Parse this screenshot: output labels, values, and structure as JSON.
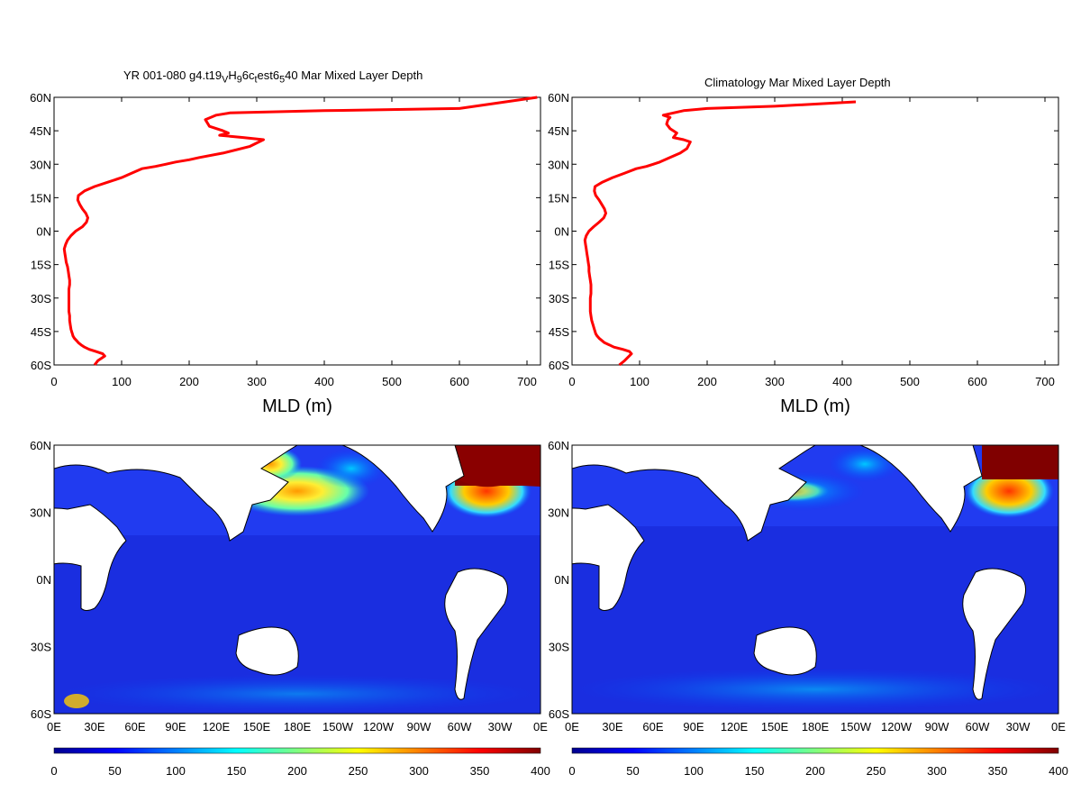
{
  "chart_data": [
    {
      "type": "line",
      "title": "YR 001-080 g4.t19_H_6c_est6_40 Mar Mixed Layer Depth",
      "title_parts": [
        "YR 001-080 g4.t19",
        "V",
        "H",
        "9",
        "6c",
        "t",
        "est6",
        "5",
        "40 Mar Mixed Layer Depth"
      ],
      "xlabel": "MLD (m)",
      "ylabel": "",
      "xlim": [
        0,
        720
      ],
      "ylim": [
        -60,
        60
      ],
      "x_ticks": [
        "0",
        "100",
        "200",
        "300",
        "400",
        "500",
        "600",
        "700"
      ],
      "y_ticks": [
        "60N",
        "45N",
        "30N",
        "15N",
        "0N",
        "15S",
        "30S",
        "45S",
        "60S"
      ],
      "line_color": "#ff0000",
      "series": [
        {
          "x": [
            60,
            65,
            75,
            72,
            62,
            52,
            45,
            40,
            36,
            33,
            30,
            28,
            27,
            26,
            25,
            24,
            23,
            23,
            22,
            22,
            22,
            22,
            22,
            22,
            23,
            23,
            22,
            21,
            20,
            18,
            17,
            16,
            15,
            17,
            20,
            25,
            32,
            42,
            48,
            50,
            47,
            42,
            38,
            35,
            36,
            45,
            60,
            80,
            100,
            115,
            130,
            150,
            165,
            180,
            200,
            215,
            250,
            290,
            310,
            280,
            245,
            258,
            250,
            230,
            224,
            240,
            260,
            400,
            600,
            715
          ],
          "y": [
            -60,
            -58,
            -56,
            -55,
            -54,
            -53,
            -52,
            -51,
            -50,
            -49,
            -48,
            -47,
            -46,
            -45,
            -44,
            -42,
            -40,
            -38,
            -36,
            -34,
            -32,
            -30,
            -28,
            -26,
            -24,
            -22,
            -20,
            -18,
            -16,
            -14,
            -12,
            -10,
            -8,
            -6,
            -4,
            -2,
            0,
            2,
            4,
            6,
            8,
            10,
            12,
            14,
            16,
            18,
            20,
            22,
            24,
            26,
            28,
            29,
            30,
            31,
            32,
            33,
            35,
            38,
            41,
            42,
            43,
            44,
            45,
            47,
            50,
            52,
            53,
            54,
            55,
            60
          ]
        }
      ]
    },
    {
      "type": "line",
      "title": "Climatology Mar Mixed Layer Depth",
      "xlabel": "MLD (m)",
      "ylabel": "",
      "xlim": [
        0,
        720
      ],
      "ylim": [
        -60,
        60
      ],
      "x_ticks": [
        "0",
        "100",
        "200",
        "300",
        "400",
        "500",
        "600",
        "700"
      ],
      "y_ticks": [
        "60N",
        "45N",
        "30N",
        "15N",
        "0N",
        "15S",
        "30S",
        "45S",
        "60S"
      ],
      "line_color": "#ff0000",
      "series": [
        {
          "x": [
            70,
            78,
            88,
            85,
            75,
            62,
            55,
            48,
            44,
            40,
            37,
            35,
            33,
            31,
            29,
            28,
            27,
            27,
            27,
            27,
            28,
            28,
            28,
            27,
            26,
            25,
            25,
            24,
            23,
            22,
            21,
            20,
            19,
            21,
            25,
            32,
            40,
            47,
            50,
            48,
            44,
            40,
            35,
            33,
            34,
            45,
            60,
            78,
            95,
            110,
            120,
            130,
            145,
            160,
            170,
            175,
            165,
            150,
            155,
            145,
            140,
            142,
            145,
            135,
            165,
            200,
            300,
            420
          ],
          "y": [
            -60,
            -58,
            -55,
            -54,
            -53,
            -52,
            -51,
            -50,
            -49,
            -48,
            -47,
            -46,
            -44,
            -42,
            -40,
            -38,
            -36,
            -34,
            -32,
            -30,
            -28,
            -26,
            -24,
            -22,
            -20,
            -18,
            -16,
            -14,
            -12,
            -10,
            -8,
            -6,
            -4,
            -2,
            0,
            2,
            4,
            6,
            8,
            10,
            12,
            14,
            16,
            18,
            20,
            22,
            24,
            26,
            28,
            29,
            30,
            31,
            33,
            35,
            37,
            40,
            41,
            42,
            44,
            46,
            48,
            50,
            51,
            52,
            54,
            55,
            56,
            58
          ]
        }
      ]
    },
    {
      "type": "heatmap",
      "title": "",
      "x_ticks": [
        "0E",
        "30E",
        "60E",
        "90E",
        "120E",
        "150E",
        "180E",
        "150W",
        "120W",
        "90W",
        "60W",
        "30W",
        "0E"
      ],
      "y_ticks": [
        "60N",
        "30N",
        "0N",
        "30S",
        "60S"
      ],
      "colorbar": {
        "min": 0,
        "max": 400,
        "ticks": [
          "0",
          "50",
          "100",
          "150",
          "200",
          "250",
          "300",
          "350",
          "400"
        ]
      }
    },
    {
      "type": "heatmap",
      "title": "",
      "x_ticks": [
        "0E",
        "30E",
        "60E",
        "90E",
        "120E",
        "150E",
        "180E",
        "150W",
        "120W",
        "90W",
        "60W",
        "30W",
        "0E"
      ],
      "y_ticks": [
        "60N",
        "30N",
        "0N",
        "30S",
        "60S"
      ],
      "colorbar": {
        "min": 0,
        "max": 400,
        "ticks": [
          "0",
          "50",
          "100",
          "150",
          "200",
          "250",
          "300",
          "350",
          "400"
        ]
      }
    }
  ]
}
